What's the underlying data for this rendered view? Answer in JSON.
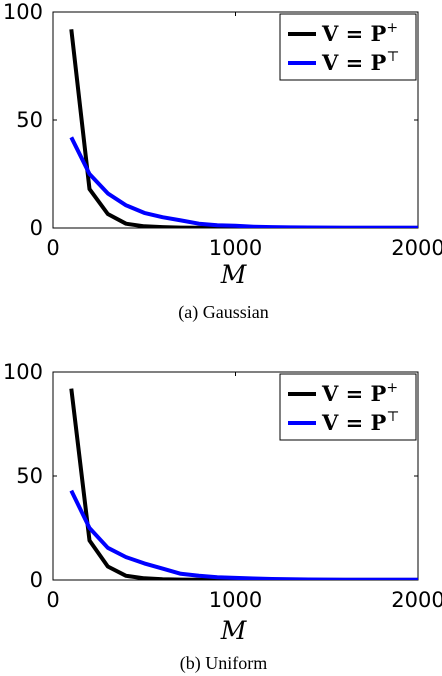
{
  "chart_data": [
    {
      "type": "line",
      "caption": "(a) Gaussian",
      "xlabel": "M",
      "ylabel": "",
      "xlim": [
        0,
        2000
      ],
      "ylim": [
        0,
        100
      ],
      "xticks": [
        0,
        1000,
        2000
      ],
      "yticks": [
        0,
        50,
        100
      ],
      "grid": false,
      "legend_position": "top-right",
      "x": [
        100,
        200,
        300,
        400,
        500,
        600,
        700,
        800,
        900,
        1000,
        1100,
        1200,
        1300,
        1400,
        1500,
        1600,
        1700,
        1800,
        1900,
        2000
      ],
      "series": [
        {
          "name": "V = P+",
          "color": "#000000",
          "values": [
            92,
            18,
            6.5,
            2,
            0.8,
            0.4,
            0.2,
            0.1,
            0.1,
            0.1,
            0.1,
            0.05,
            0.05,
            0.05,
            0.05,
            0.05,
            0.05,
            0.05,
            0.05,
            0.05
          ]
        },
        {
          "name": "V = PT",
          "color": "#0000ff",
          "values": [
            42,
            25,
            16,
            10.5,
            7,
            5,
            3.5,
            2,
            1.3,
            1,
            0.6,
            0.4,
            0.3,
            0.25,
            0.2,
            0.15,
            0.12,
            0.1,
            0.1,
            0.1
          ]
        }
      ]
    },
    {
      "type": "line",
      "caption": "(b) Uniform",
      "xlabel": "M",
      "ylabel": "",
      "xlim": [
        0,
        2000
      ],
      "ylim": [
        0,
        100
      ],
      "xticks": [
        0,
        1000,
        2000
      ],
      "yticks": [
        0,
        50,
        100
      ],
      "grid": false,
      "legend_position": "top-right",
      "x": [
        100,
        200,
        300,
        400,
        500,
        600,
        700,
        800,
        900,
        1000,
        1100,
        1200,
        1300,
        1400,
        1500,
        1600,
        1700,
        1800,
        1900,
        2000
      ],
      "series": [
        {
          "name": "V = P+",
          "color": "#000000",
          "values": [
            92,
            19,
            6.5,
            2,
            0.8,
            0.4,
            0.2,
            0.1,
            0.1,
            0.1,
            0.1,
            0.05,
            0.05,
            0.05,
            0.05,
            0.05,
            0.05,
            0.05,
            0.05,
            0.05
          ]
        },
        {
          "name": "V = PT",
          "color": "#0000ff",
          "values": [
            43,
            25,
            15.5,
            11,
            8,
            5.5,
            3,
            2,
            1.3,
            1,
            0.7,
            0.5,
            0.35,
            0.25,
            0.2,
            0.15,
            0.12,
            0.1,
            0.1,
            0.1
          ]
        }
      ]
    }
  ]
}
